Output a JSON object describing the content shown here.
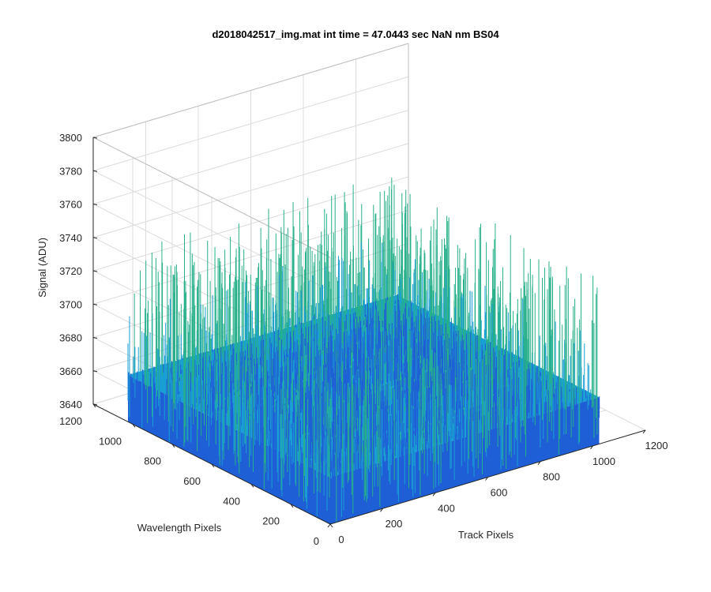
{
  "chart_data": {
    "type": "surface",
    "title": "d2018042517_img.mat int time = 47.0443 sec  NaN nm BS04",
    "xlabel": "Track Pixels",
    "ylabel": "Wavelength Pixels",
    "zlabel": "Signal (ADU)",
    "xlim": [
      0,
      1200
    ],
    "ylim": [
      0,
      1200
    ],
    "zlim": [
      3640,
      3800
    ],
    "xticks": [
      "0",
      "200",
      "400",
      "600",
      "800",
      "1000",
      "1200"
    ],
    "yticks": [
      "0",
      "200",
      "400",
      "600",
      "800",
      "1000",
      "1200"
    ],
    "zticks": [
      "3640",
      "3660",
      "3680",
      "3700",
      "3720",
      "3740",
      "3760",
      "3780",
      "3800"
    ],
    "grid": true,
    "colormap": "parula",
    "colors": {
      "low": "#1f5fd6",
      "mid": "#1a9fd4",
      "high": "#27b08a"
    },
    "surface": {
      "x_range": [
        0,
        1024
      ],
      "y_range": [
        0,
        1024
      ],
      "mean_signal": 3668,
      "min_signal": 3640,
      "max_signal": 3742
    }
  }
}
